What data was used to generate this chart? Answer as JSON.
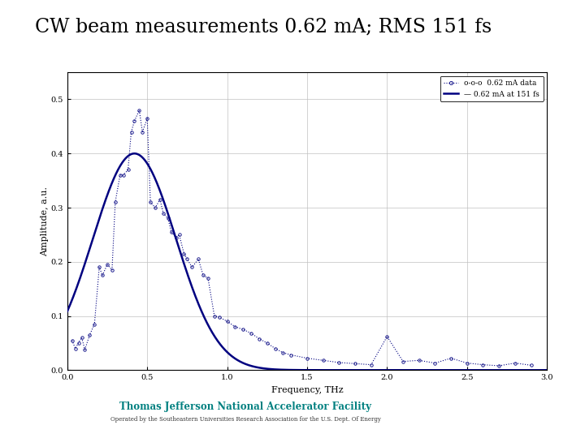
{
  "title": "CW beam measurements 0.62 mA; RMS 151 fs",
  "title_fontsize": 18,
  "xlabel": "Frequency, THz",
  "ylabel": "Amplitude, a.u.",
  "xlim": [
    0,
    3
  ],
  "ylim": [
    0,
    0.55
  ],
  "xticks": [
    0,
    0.5,
    1,
    1.5,
    2,
    2.5,
    3
  ],
  "yticks": [
    0,
    0.1,
    0.2,
    0.3,
    0.4,
    0.5
  ],
  "legend_data_label": "o-o-o  0.62 mA data",
  "legend_fit_label": "— 0.62 mA at 151 fs",
  "curve_color": "#000080",
  "background_color": "#ffffff",
  "footer_text": "Thomas Jefferson National Accelerator Facility",
  "footer_sub": "Operated by the Southeastern Universities Research Association for the U.S. Dept. Of Energy",
  "teal_color": "#008080",
  "scatter_freqs": [
    0.03,
    0.05,
    0.07,
    0.09,
    0.11,
    0.14,
    0.17,
    0.2,
    0.22,
    0.25,
    0.28,
    0.3,
    0.33,
    0.35,
    0.38,
    0.4,
    0.42,
    0.45,
    0.47,
    0.5,
    0.52,
    0.55,
    0.58,
    0.6,
    0.63,
    0.65,
    0.68,
    0.7,
    0.73,
    0.75,
    0.78,
    0.82,
    0.85,
    0.88,
    0.92,
    0.95,
    1.0,
    1.05,
    1.1,
    1.15,
    1.2,
    1.25,
    1.3,
    1.35,
    1.4,
    1.5,
    1.6,
    1.7,
    1.8,
    1.9,
    2.0,
    2.1,
    2.2,
    2.3,
    2.4,
    2.5,
    2.6,
    2.7,
    2.8,
    2.9
  ],
  "scatter_amps": [
    0.055,
    0.04,
    0.05,
    0.06,
    0.038,
    0.065,
    0.085,
    0.19,
    0.175,
    0.195,
    0.185,
    0.31,
    0.36,
    0.36,
    0.37,
    0.44,
    0.46,
    0.48,
    0.44,
    0.465,
    0.31,
    0.3,
    0.315,
    0.29,
    0.28,
    0.255,
    0.245,
    0.25,
    0.215,
    0.205,
    0.19,
    0.205,
    0.175,
    0.17,
    0.1,
    0.098,
    0.09,
    0.08,
    0.075,
    0.068,
    0.058,
    0.05,
    0.04,
    0.032,
    0.028,
    0.022,
    0.018,
    0.014,
    0.012,
    0.01,
    0.062,
    0.016,
    0.018,
    0.013,
    0.022,
    0.013,
    0.01,
    0.008,
    0.013,
    0.009
  ],
  "fit_peak_freq": 0.42,
  "fit_peak_amp": 0.4,
  "fit_sigma": 0.26
}
